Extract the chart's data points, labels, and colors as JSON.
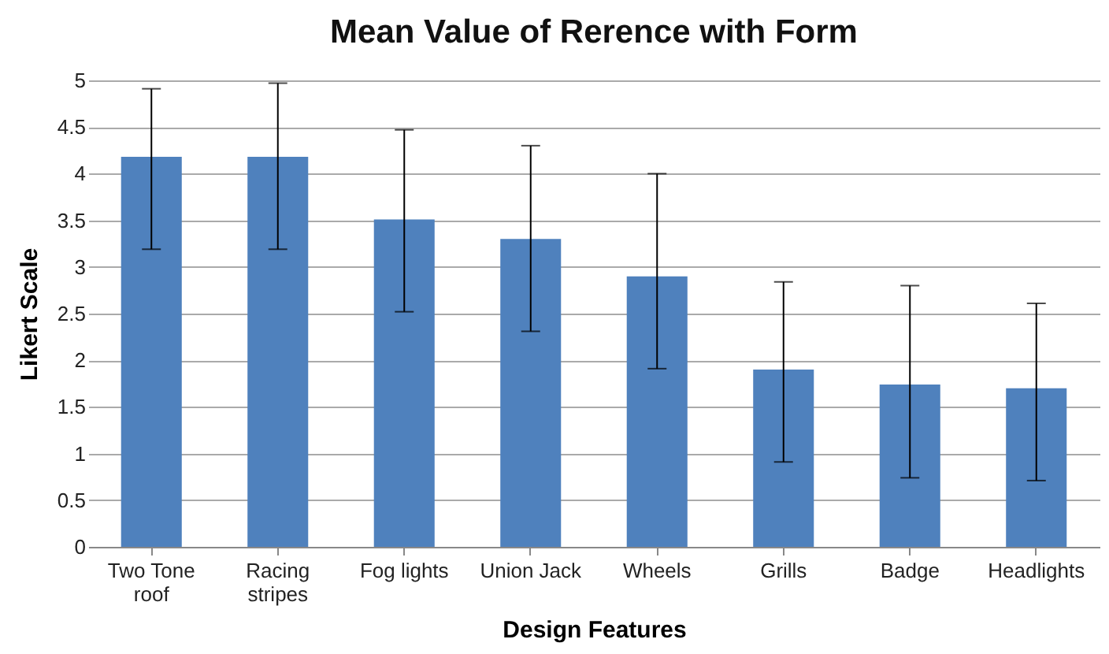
{
  "chart_data": {
    "type": "bar",
    "title": "Mean Value of Rerence with Form",
    "xlabel": "Design Features",
    "ylabel": "Likert Scale",
    "categories": [
      "Two Tone roof",
      "Racing stripes",
      "Fog lights",
      "Union Jack",
      "Wheels",
      "Grills",
      "Badge",
      "Headlights"
    ],
    "series": [
      {
        "color": "#4f81bd",
        "values": [
          4.18,
          4.18,
          3.51,
          3.3,
          2.9,
          1.9,
          1.74,
          1.7
        ],
        "errors": [
          [
            3.19,
            4.91
          ],
          [
            3.19,
            4.97
          ],
          [
            2.52,
            4.47
          ],
          [
            2.31,
            4.3
          ],
          [
            1.91,
            4.0
          ],
          [
            0.91,
            2.84
          ],
          [
            0.74,
            2.8
          ],
          [
            0.71,
            2.61
          ]
        ]
      }
    ],
    "ylim": [
      0,
      5
    ],
    "yticks": [
      0,
      0.5,
      1,
      1.5,
      2,
      2.5,
      3,
      3.5,
      4,
      4.5,
      5
    ],
    "grid": "y"
  }
}
